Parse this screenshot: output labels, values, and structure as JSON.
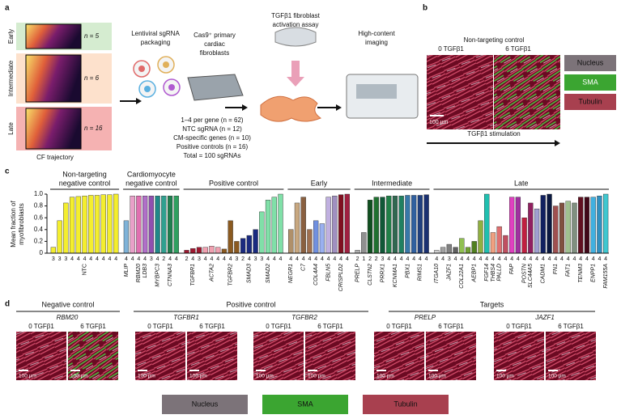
{
  "panel_a": {
    "label": "a",
    "stages": [
      {
        "name": "Early",
        "n": "n = 5"
      },
      {
        "name": "Intermediate",
        "n": "n = 6"
      },
      {
        "name": "Late",
        "n": "n = 16"
      }
    ],
    "xlabel": "CF trajectory",
    "steps": [
      [
        "Lentiviral sgRNA",
        "packaging"
      ],
      [
        "Cas9⁺ primary",
        "cardiac",
        "fibroblasts"
      ],
      [
        "TGFβ1 fibroblast",
        "activation assay"
      ],
      [
        "High-content",
        "imaging"
      ]
    ],
    "summary": [
      "1–4 per gene (n = 62)",
      "NTC sgRNA (n = 12)",
      "CM-specific genes (n = 10)",
      "Positive controls (n = 16)",
      "Total = 100 sgRNAs"
    ]
  },
  "panel_b": {
    "label": "b",
    "title": "Non-targeting control",
    "conditions": [
      "0 TGFβ1",
      "6 TGFβ1"
    ],
    "scale": "100 µm",
    "arrow_label": "TGFβ1 stimulation"
  },
  "channels": [
    {
      "name": "Nucleus",
      "color": "#7c7379"
    },
    {
      "name": "SMA",
      "color": "#3ba531"
    },
    {
      "name": "Tubulin",
      "color": "#a8404f"
    }
  ],
  "chart_data": {
    "type": "bar",
    "label": "c",
    "ylabel": [
      "Mean fraction of",
      "myofibroblasts"
    ],
    "ylim": [
      0,
      1
    ],
    "yticks": [
      0,
      0.2,
      0.4,
      0.6,
      0.8,
      {
        "value": 1,
        "label": "1.0"
      }
    ],
    "groups": [
      {
        "title": [
          "Non-targeting",
          "negative control"
        ],
        "label": "NTC",
        "labels": [
          null,
          null,
          null,
          null,
          null,
          null,
          null,
          null,
          null,
          null,
          null
        ],
        "values": [
          0.1,
          0.55,
          0.85,
          0.95,
          0.96,
          0.97,
          0.98,
          0.98,
          0.99,
          0.99,
          1.0
        ],
        "counts": [
          3,
          3,
          3,
          4,
          4,
          4,
          4,
          4,
          4,
          4,
          4
        ],
        "colors": [
          "#f4ee2e",
          "#f4ee2e",
          "#f4ee2e",
          "#f4ee2e",
          "#f4ee2e",
          "#f4ee2e",
          "#f4ee2e",
          "#f4ee2e",
          "#f4ee2e",
          "#f4ee2e",
          "#f4ee2e"
        ]
      },
      {
        "title": [
          "Cardiomyocyte",
          "negative control"
        ],
        "labels": [
          "MLIP",
          null,
          "RBM20",
          "LDB3",
          null,
          "MYBPC3",
          null,
          "CTNNA3",
          null
        ],
        "values": [
          0.55,
          0.97,
          0.97,
          0.97,
          0.97,
          0.97,
          0.97,
          0.97,
          0.97
        ],
        "counts": [
          4,
          4,
          4,
          4,
          3,
          4,
          2,
          4,
          4
        ],
        "colors": [
          "#7fb3d8",
          "#e8a0c8",
          "#e070b0",
          "#b070c8",
          "#9050b0",
          "#208888",
          "#30a090",
          "#208050",
          "#30a060"
        ]
      },
      {
        "title": [
          "Positive control"
        ],
        "labels": [
          null,
          "TGFBR1",
          null,
          null,
          "ACTA2",
          null,
          null,
          "TGFBR2",
          null,
          null,
          "SMAD3",
          null,
          null,
          "SMAD2",
          null,
          null
        ],
        "values": [
          0.05,
          0.08,
          0.1,
          0.1,
          0.12,
          0.1,
          0.07,
          0.55,
          0.2,
          0.25,
          0.3,
          0.4,
          0.7,
          0.9,
          0.95,
          1.0
        ],
        "counts": [
          2,
          4,
          3,
          4,
          4,
          4,
          4,
          4,
          3,
          2,
          4,
          3,
          3,
          4,
          4,
          4
        ],
        "colors": [
          "#a01830",
          "#a01830",
          "#a01830",
          "#f0a0b0",
          "#f0a0b0",
          "#f0a0b0",
          "#8b5a20",
          "#8b5a20",
          "#8b5a20",
          "#1a2a80",
          "#1a2a80",
          "#1a2a80",
          "#80e0a8",
          "#80e0a8",
          "#80e0a8",
          "#80e0a8"
        ]
      },
      {
        "title": [
          "Early"
        ],
        "labels": [
          "NEGR1",
          null,
          "C7",
          null,
          "COL4A4",
          null,
          "FBLN5",
          null,
          "CRISPLD2",
          null
        ],
        "values": [
          0.4,
          0.85,
          0.95,
          0.4,
          0.55,
          0.5,
          0.95,
          0.97,
          0.99,
          1.0
        ],
        "counts": [
          4,
          4,
          4,
          4,
          4,
          4,
          4,
          4,
          4,
          4
        ],
        "colors": [
          "#b0906a",
          "#c8a880",
          "#8a6040",
          "#a07050",
          "#7090e0",
          "#9ab0f0",
          "#c0b0e0",
          "#a090c0",
          "#801020",
          "#a02040"
        ]
      },
      {
        "title": [
          "Intermediate"
        ],
        "labels": [
          "PRELP",
          null,
          "CLSTN2",
          null,
          "PRRX1",
          null,
          "KCNMA1",
          null,
          "PBX1",
          null,
          "RIMS1",
          null
        ],
        "values": [
          0.05,
          0.35,
          0.9,
          0.95,
          0.95,
          0.97,
          0.97,
          0.97,
          0.98,
          0.98,
          0.98,
          0.99
        ],
        "counts": [
          2,
          1,
          2,
          2,
          3,
          4,
          4,
          4,
          4,
          4,
          4,
          4
        ],
        "colors": [
          "#b0b0b0",
          "#909090",
          "#105020",
          "#207030",
          "#105838",
          "#208048",
          "#306850",
          "#208060",
          "#3878a8",
          "#3060a0",
          "#204080",
          "#1a3070"
        ]
      },
      {
        "title": [
          "Late"
        ],
        "labels": [
          "ITGA10",
          null,
          "JAZF1",
          null,
          "COL22A1",
          null,
          "AEBP1",
          null,
          "FGF14",
          "THBS4",
          "PALLD",
          null,
          "FAP",
          null,
          "POSTN",
          "SLC44A5",
          null,
          "CADM1",
          null,
          "FN1",
          null,
          "FAT1",
          null,
          "TENM3",
          null,
          "ENPP1",
          null,
          "FAM155A"
        ],
        "values": [
          0.05,
          0.1,
          0.15,
          0.1,
          0.25,
          0.1,
          0.2,
          0.55,
          1.0,
          0.35,
          0.45,
          0.3,
          0.95,
          0.95,
          0.6,
          0.85,
          0.75,
          0.98,
          1.0,
          0.8,
          0.85,
          0.88,
          0.85,
          0.95,
          0.95,
          0.95,
          0.97,
          1.0
        ],
        "counts": [
          4,
          4,
          3,
          4,
          4,
          4,
          4,
          4,
          4,
          4,
          4,
          4,
          4,
          4,
          4,
          4,
          4,
          4,
          4,
          4,
          4,
          4,
          4,
          4,
          4,
          4,
          4,
          4
        ],
        "colors": [
          "#d0d0d0",
          "#a0a0a0",
          "#808080",
          "#606060",
          "#90c050",
          "#70a030",
          "#508020",
          "#90b040",
          "#20c0b0",
          "#f0a080",
          "#e07070",
          "#c05060",
          "#e040c0",
          "#a030a0",
          "#c02040",
          "#902060",
          "#a0a0d0",
          "#102060",
          "#0a1840",
          "#a05050",
          "#805040",
          "#a0c090",
          "#809080",
          "#601020",
          "#400818",
          "#40b0e0",
          "#3090c0",
          "#40c8d0"
        ]
      }
    ]
  },
  "panel_d": {
    "label": "d",
    "sections": [
      {
        "title": "Negative control",
        "genes": [
          "RBM20"
        ]
      },
      {
        "title": "Positive control",
        "genes": [
          "TGFBR1",
          "TGFBR2"
        ]
      },
      {
        "title": "Targets",
        "genes": [
          "PRELP",
          "JAZF1"
        ]
      }
    ],
    "conditions": [
      "0 TGFβ1",
      "6 TGFβ1"
    ],
    "scale": "100 µm"
  }
}
